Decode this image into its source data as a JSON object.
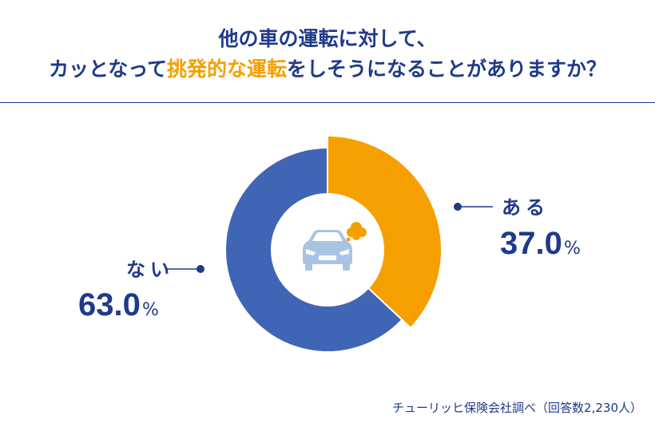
{
  "title": {
    "line1": "他の車の運転に対して、",
    "line2_prefix": "カッとなって",
    "line2_highlight": "挑発的な運転",
    "line2_suffix": "をしそうになることがありますか？"
  },
  "chart_data": {
    "type": "pie",
    "variant": "donut",
    "slices": [
      {
        "label": "ある",
        "value": 37.0,
        "color": "#f5a000"
      },
      {
        "label": "ない",
        "value": 63.0,
        "color": "#4065b4"
      }
    ],
    "value_labels": [
      "37.0",
      "63.0"
    ],
    "unit": "%",
    "center_icon": "car-icon"
  },
  "source": "チューリッヒ保険会社調べ（回答数2,230人）"
}
